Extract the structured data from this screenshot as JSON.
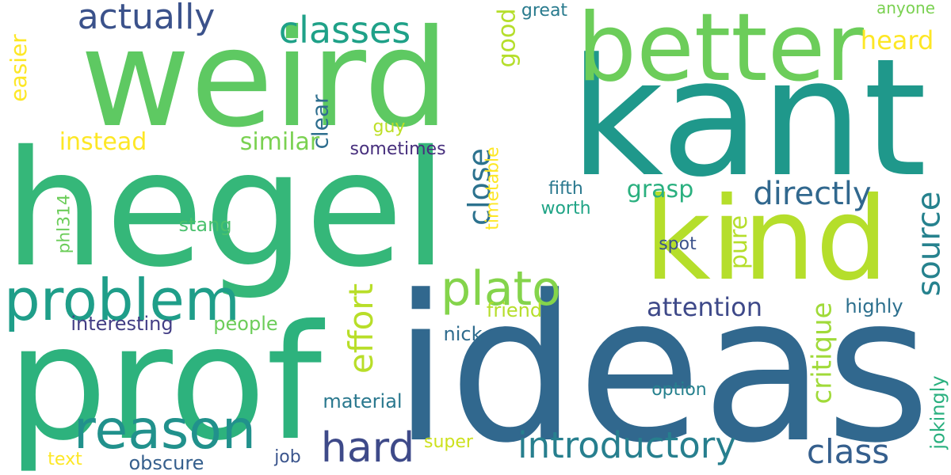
{
  "words": [
    {
      "text": "hegel",
      "color": "#35b779"
    },
    {
      "text": "kant",
      "color": "#1f988b"
    },
    {
      "text": "ideas",
      "color": "#31688e"
    },
    {
      "text": "weird",
      "color": "#5ec962"
    },
    {
      "text": "prof",
      "color": "#2db27d"
    },
    {
      "text": "kind",
      "color": "#b5de2b"
    },
    {
      "text": "better",
      "color": "#6ccd5a"
    },
    {
      "text": "problem",
      "color": "#1f9e89"
    },
    {
      "text": "reason",
      "color": "#21918c"
    },
    {
      "text": "plato",
      "color": "#84d44b"
    },
    {
      "text": "actually",
      "color": "#3b528b"
    },
    {
      "text": "classes",
      "color": "#1fa188"
    },
    {
      "text": "hard",
      "color": "#3e4a89"
    },
    {
      "text": "introductory",
      "color": "#277f8e"
    },
    {
      "text": "class",
      "color": "#355f8d"
    },
    {
      "text": "directly",
      "color": "#31688e"
    },
    {
      "text": "attention",
      "color": "#3e4989"
    },
    {
      "text": "effort",
      "color": "#b8de29"
    },
    {
      "text": "source",
      "color": "#26828e"
    },
    {
      "text": "close",
      "color": "#2c728e"
    },
    {
      "text": "similar",
      "color": "#7ad151"
    },
    {
      "text": "instead",
      "color": "#fde725"
    },
    {
      "text": "heard",
      "color": "#fde725"
    },
    {
      "text": "critique",
      "color": "#a0da39"
    },
    {
      "text": "grasp",
      "color": "#2ab07f"
    },
    {
      "text": "pure",
      "color": "#b5de2b"
    },
    {
      "text": "good",
      "color": "#b5de2b"
    },
    {
      "text": "easier",
      "color": "#fde725"
    },
    {
      "text": "clear",
      "color": "#2e6e8e"
    },
    {
      "text": "guy",
      "color": "#bddf26"
    },
    {
      "text": "sometimes",
      "color": "#472f7d"
    },
    {
      "text": "fifth",
      "color": "#2a788e"
    },
    {
      "text": "worth",
      "color": "#20a486"
    },
    {
      "text": "stang",
      "color": "#4ac16d"
    },
    {
      "text": "phl314",
      "color": "#6ccd5a"
    },
    {
      "text": "timetable",
      "color": "#fde725"
    },
    {
      "text": "spot",
      "color": "#3b528b"
    },
    {
      "text": "highly",
      "color": "#2d708e"
    },
    {
      "text": "interesting",
      "color": "#433e85"
    },
    {
      "text": "people",
      "color": "#6ccd5a"
    },
    {
      "text": "friend",
      "color": "#b5de2b"
    },
    {
      "text": "nick",
      "color": "#2f6c8e"
    },
    {
      "text": "material",
      "color": "#2a788e"
    },
    {
      "text": "option",
      "color": "#26818e"
    },
    {
      "text": "jokingly",
      "color": "#2ab07f"
    },
    {
      "text": "super",
      "color": "#cde11d"
    },
    {
      "text": "job",
      "color": "#3a548c"
    },
    {
      "text": "text",
      "color": "#fde725"
    },
    {
      "text": "obscure",
      "color": "#355f8d"
    },
    {
      "text": "anyone",
      "color": "#7ad151"
    },
    {
      "text": "great",
      "color": "#297b8e"
    }
  ]
}
